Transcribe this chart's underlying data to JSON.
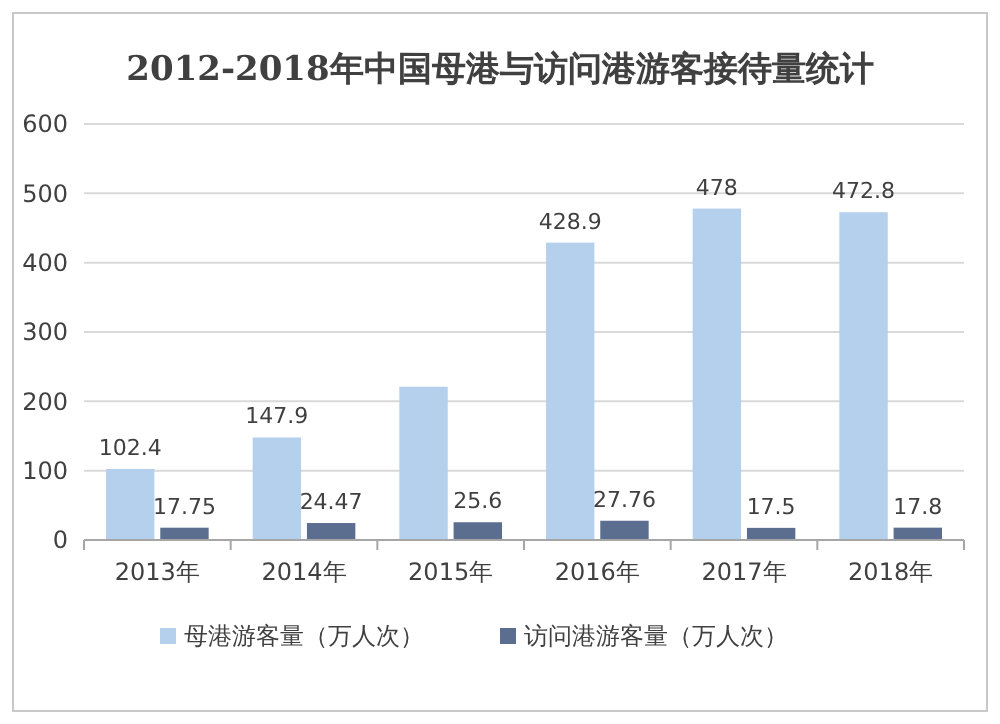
{
  "chart_data": {
    "type": "bar",
    "title": "2012-2018年中国母港与访问港游客接待量统计",
    "categories": [
      "2013年",
      "2014年",
      "2015年",
      "2016年",
      "2017年",
      "2018年"
    ],
    "series": [
      {
        "name": "母港游客量（万人次）",
        "color": "#b4d0ec",
        "values": [
          102.4,
          147.9,
          221,
          428.9,
          478,
          472.8
        ],
        "value_labels": [
          "102.4",
          "147.9",
          null,
          "428.9",
          "478",
          "472.8"
        ]
      },
      {
        "name": "访问港游客量（万人次）",
        "color": "#5b6e8f",
        "values": [
          17.75,
          24.47,
          25.6,
          27.76,
          17.5,
          17.8
        ],
        "value_labels": [
          "17.75",
          "24.47",
          "25.6",
          "27.76",
          "17.5",
          "17.8"
        ]
      }
    ],
    "ylim": [
      0,
      600
    ],
    "yticks": [
      0,
      100,
      200,
      300,
      400,
      500,
      600
    ],
    "grid": "y",
    "legend": "bottom"
  }
}
